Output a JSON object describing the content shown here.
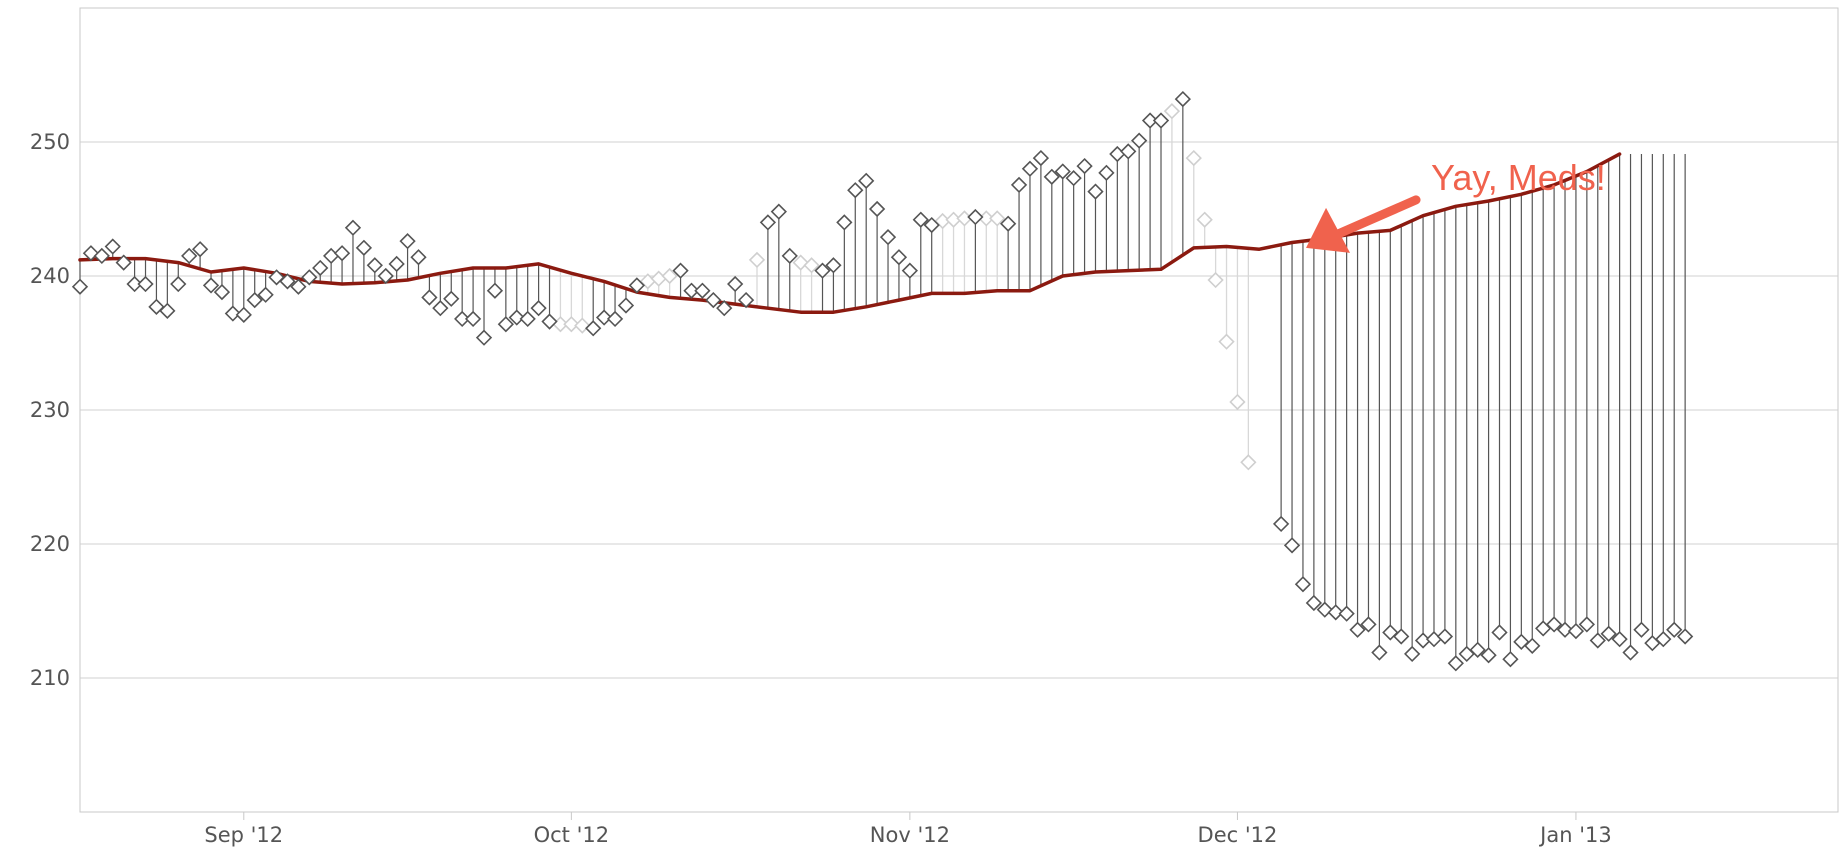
{
  "chart_data": {
    "type": "line",
    "title": "",
    "xlabel": "",
    "ylabel": "",
    "x_range": [
      "2012-08-17",
      "2013-01-25"
    ],
    "ylim": [
      200,
      260
    ],
    "y_ticks": [
      210,
      220,
      230,
      240,
      250
    ],
    "x_ticks": [
      {
        "date": "2012-09-01",
        "label": "Sep '12"
      },
      {
        "date": "2012-10-01",
        "label": "Oct '12"
      },
      {
        "date": "2012-11-01",
        "label": "Nov '12"
      },
      {
        "date": "2012-12-01",
        "label": "Dec '12"
      },
      {
        "date": "2013-01-01",
        "label": "Jan '13"
      }
    ],
    "grid": "horizontal",
    "colors": {
      "trend": "#8b1a10",
      "measurement": "#555555",
      "interpolated": "#d8d8d8",
      "annotation": "#f0624d"
    },
    "annotation": {
      "text": "Yay, Meds!",
      "arrow_points_to": {
        "date": "2012-12-06",
        "value": 241.5
      }
    },
    "trend": {
      "name": "",
      "points": [
        [
          "2012-08-17",
          241.2
        ],
        [
          "2012-08-20",
          241.3
        ],
        [
          "2012-08-23",
          241.3
        ],
        [
          "2012-08-26",
          241.0
        ],
        [
          "2012-08-29",
          240.3
        ],
        [
          "2012-09-01",
          240.6
        ],
        [
          "2012-09-04",
          240.2
        ],
        [
          "2012-09-07",
          239.6
        ],
        [
          "2012-09-10",
          239.4
        ],
        [
          "2012-09-13",
          239.5
        ],
        [
          "2012-09-16",
          239.7
        ],
        [
          "2012-09-19",
          240.2
        ],
        [
          "2012-09-22",
          240.6
        ],
        [
          "2012-09-25",
          240.6
        ],
        [
          "2012-09-28",
          240.9
        ],
        [
          "2012-10-01",
          240.2
        ],
        [
          "2012-10-04",
          239.6
        ],
        [
          "2012-10-07",
          238.8
        ],
        [
          "2012-10-10",
          238.4
        ],
        [
          "2012-10-13",
          238.2
        ],
        [
          "2012-10-16",
          237.9
        ],
        [
          "2012-10-19",
          237.6
        ],
        [
          "2012-10-22",
          237.3
        ],
        [
          "2012-10-25",
          237.3
        ],
        [
          "2012-10-28",
          237.7
        ],
        [
          "2012-10-31",
          238.2
        ],
        [
          "2012-11-03",
          238.7
        ],
        [
          "2012-11-06",
          238.7
        ],
        [
          "2012-11-09",
          238.9
        ],
        [
          "2012-11-12",
          238.9
        ],
        [
          "2012-11-15",
          240.0
        ],
        [
          "2012-11-18",
          240.3
        ],
        [
          "2012-11-21",
          240.4
        ],
        [
          "2012-11-24",
          240.5
        ],
        [
          "2012-11-27",
          242.1
        ],
        [
          "2012-11-30",
          242.2
        ],
        [
          "2012-12-03",
          242.0
        ],
        [
          "2012-12-06",
          242.5
        ],
        [
          "2012-12-09",
          242.8
        ],
        [
          "2012-12-12",
          243.2
        ],
        [
          "2012-12-15",
          243.4
        ],
        [
          "2012-12-18",
          244.5
        ],
        [
          "2012-12-21",
          245.2
        ],
        [
          "2012-12-24",
          245.6
        ],
        [
          "2012-12-27",
          246.1
        ],
        [
          "2012-12-30",
          246.8
        ],
        [
          "2013-01-02",
          247.8
        ],
        [
          "2013-01-05",
          249.1
        ]
      ]
    },
    "series": [
      {
        "name": "",
        "points": [
          [
            "2012-08-17",
            239.2
          ],
          [
            "2012-08-18",
            241.7
          ],
          [
            "2012-08-19",
            241.5
          ],
          [
            "2012-08-20",
            242.2
          ],
          [
            "2012-08-21",
            241.0
          ],
          [
            "2012-08-22",
            239.4
          ],
          [
            "2012-08-23",
            239.4
          ],
          [
            "2012-08-24",
            237.7
          ],
          [
            "2012-08-25",
            237.4
          ],
          [
            "2012-08-26",
            239.4
          ],
          [
            "2012-08-27",
            241.5
          ],
          [
            "2012-08-28",
            242.0
          ],
          [
            "2012-08-29",
            239.3
          ],
          [
            "2012-08-30",
            238.8
          ],
          [
            "2012-08-31",
            237.2
          ],
          [
            "2012-09-01",
            237.1
          ],
          [
            "2012-09-02",
            238.2
          ],
          [
            "2012-09-03",
            238.6
          ],
          [
            "2012-09-04",
            239.9
          ],
          [
            "2012-09-05",
            239.6
          ],
          [
            "2012-09-06",
            239.2
          ],
          [
            "2012-09-07",
            239.9
          ],
          [
            "2012-09-08",
            240.6
          ],
          [
            "2012-09-09",
            241.5
          ],
          [
            "2012-09-10",
            241.7
          ],
          [
            "2012-09-11",
            243.6
          ],
          [
            "2012-09-12",
            242.1
          ],
          [
            "2012-09-13",
            240.8
          ],
          [
            "2012-09-14",
            240.0
          ],
          [
            "2012-09-15",
            240.9
          ],
          [
            "2012-09-16",
            242.6
          ],
          [
            "2012-09-17",
            241.4
          ],
          [
            "2012-09-18",
            238.4
          ],
          [
            "2012-09-19",
            237.6
          ],
          [
            "2012-09-20",
            238.3
          ],
          [
            "2012-09-21",
            236.8
          ],
          [
            "2012-09-22",
            236.8
          ],
          [
            "2012-09-23",
            235.4
          ],
          [
            "2012-09-24",
            238.9
          ],
          [
            "2012-09-25",
            236.4
          ],
          [
            "2012-09-26",
            236.9
          ],
          [
            "2012-09-27",
            236.8
          ],
          [
            "2012-09-28",
            237.6
          ],
          [
            "2012-09-29",
            236.6
          ],
          [
            "2012-10-03",
            236.1
          ],
          [
            "2012-10-04",
            236.9
          ],
          [
            "2012-10-05",
            236.8
          ],
          [
            "2012-10-06",
            237.8
          ],
          [
            "2012-10-07",
            239.3
          ],
          [
            "2012-10-11",
            240.4
          ],
          [
            "2012-10-12",
            238.9
          ],
          [
            "2012-10-13",
            238.9
          ],
          [
            "2012-10-14",
            238.2
          ],
          [
            "2012-10-15",
            237.6
          ],
          [
            "2012-10-16",
            239.4
          ],
          [
            "2012-10-17",
            238.2
          ],
          [
            "2012-10-19",
            244.0
          ],
          [
            "2012-10-20",
            244.8
          ],
          [
            "2012-10-21",
            241.5
          ],
          [
            "2012-10-24",
            240.4
          ],
          [
            "2012-10-25",
            240.8
          ],
          [
            "2012-10-26",
            244.0
          ],
          [
            "2012-10-27",
            246.4
          ],
          [
            "2012-10-28",
            247.1
          ],
          [
            "2012-10-29",
            245.0
          ],
          [
            "2012-10-30",
            242.9
          ],
          [
            "2012-10-31",
            241.4
          ],
          [
            "2012-11-01",
            240.4
          ],
          [
            "2012-11-02",
            244.2
          ],
          [
            "2012-11-03",
            243.8
          ],
          [
            "2012-11-07",
            244.4
          ],
          [
            "2012-11-10",
            243.9
          ],
          [
            "2012-11-11",
            246.8
          ],
          [
            "2012-11-12",
            248.0
          ],
          [
            "2012-11-13",
            248.8
          ],
          [
            "2012-11-14",
            247.4
          ],
          [
            "2012-11-15",
            247.8
          ],
          [
            "2012-11-16",
            247.3
          ],
          [
            "2012-11-17",
            248.2
          ],
          [
            "2012-11-18",
            246.3
          ],
          [
            "2012-11-19",
            247.7
          ],
          [
            "2012-11-20",
            249.1
          ],
          [
            "2012-11-21",
            249.3
          ],
          [
            "2012-11-22",
            250.1
          ],
          [
            "2012-11-23",
            251.6
          ],
          [
            "2012-11-24",
            251.6
          ],
          [
            "2012-11-26",
            253.2
          ],
          [
            "2012-12-05",
            221.5
          ],
          [
            "2012-12-06",
            219.9
          ],
          [
            "2012-12-07",
            217.0
          ],
          [
            "2012-12-08",
            215.6
          ],
          [
            "2012-12-09",
            215.1
          ],
          [
            "2012-12-10",
            214.9
          ],
          [
            "2012-12-11",
            214.8
          ],
          [
            "2012-12-12",
            213.6
          ],
          [
            "2012-12-13",
            214.0
          ],
          [
            "2012-12-14",
            211.9
          ],
          [
            "2012-12-15",
            213.4
          ],
          [
            "2012-12-16",
            213.1
          ],
          [
            "2012-12-17",
            211.8
          ],
          [
            "2012-12-18",
            212.8
          ],
          [
            "2012-12-19",
            212.9
          ],
          [
            "2012-12-20",
            213.1
          ],
          [
            "2012-12-21",
            211.1
          ],
          [
            "2012-12-22",
            211.8
          ],
          [
            "2012-12-23",
            212.1
          ],
          [
            "2012-12-24",
            211.7
          ],
          [
            "2012-12-25",
            213.4
          ],
          [
            "2012-12-26",
            211.4
          ],
          [
            "2012-12-27",
            212.7
          ],
          [
            "2012-12-28",
            212.4
          ],
          [
            "2012-12-29",
            213.7
          ],
          [
            "2012-12-30",
            214.0
          ],
          [
            "2012-12-31",
            213.6
          ],
          [
            "2013-01-01",
            213.5
          ],
          [
            "2013-01-02",
            214.0
          ],
          [
            "2013-01-03",
            212.8
          ],
          [
            "2013-01-04",
            213.3
          ],
          [
            "2013-01-05",
            212.9
          ],
          [
            "2013-01-06",
            211.9
          ],
          [
            "2013-01-07",
            213.6
          ],
          [
            "2013-01-08",
            212.6
          ],
          [
            "2013-01-09",
            212.9
          ],
          [
            "2013-01-10",
            213.6
          ],
          [
            "2013-01-11",
            213.1
          ]
        ]
      },
      {
        "name": "",
        "points": [
          [
            "2012-09-30",
            236.4
          ],
          [
            "2012-10-01",
            236.4
          ],
          [
            "2012-10-02",
            236.3
          ],
          [
            "2012-10-08",
            239.6
          ],
          [
            "2012-10-09",
            239.8
          ],
          [
            "2012-10-10",
            240.0
          ],
          [
            "2012-10-18",
            241.2
          ],
          [
            "2012-10-22",
            241.0
          ],
          [
            "2012-10-23",
            240.8
          ],
          [
            "2012-11-04",
            244.1
          ],
          [
            "2012-11-05",
            244.2
          ],
          [
            "2012-11-06",
            244.3
          ],
          [
            "2012-11-08",
            244.3
          ],
          [
            "2012-11-09",
            244.3
          ],
          [
            "2012-11-25",
            252.3
          ],
          [
            "2012-11-27",
            248.8
          ],
          [
            "2012-11-28",
            244.2
          ],
          [
            "2012-11-29",
            239.7
          ],
          [
            "2012-11-30",
            235.1
          ],
          [
            "2012-12-01",
            230.6
          ],
          [
            "2012-12-02",
            226.1
          ]
        ]
      }
    ],
    "trend_after": [
      [
        "2013-01-05",
        249.1
      ],
      [
        "2013-01-05",
        249.1
      ]
    ]
  }
}
